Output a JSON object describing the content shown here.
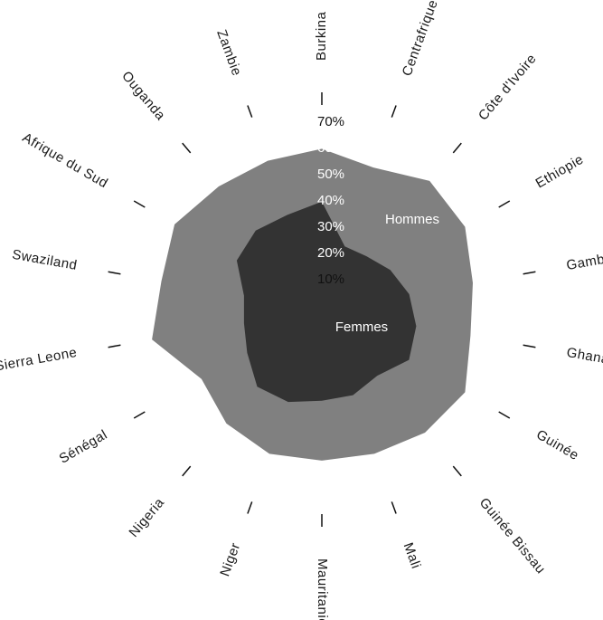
{
  "chart_data": {
    "type": "radar",
    "title": "",
    "categories": [
      "Burkina",
      "Centrafrique",
      "Côte d'Ivoire",
      "Ethiopie",
      "Gambie",
      "Ghana",
      "Guinée",
      "Guinée Bissau",
      "Mali",
      "Mauritanie",
      "Niger",
      "Nigeria",
      "Sénégal",
      "Sierra Leone",
      "Swaziland",
      "Afrique du Sud",
      "Ouganda",
      "Zambie"
    ],
    "r_ticks": [
      "10%",
      "20%",
      "30%",
      "40%",
      "50%",
      "60%",
      "70%"
    ],
    "rlim": [
      0,
      100
    ],
    "series": [
      {
        "name": "Hommes",
        "color": "#808080",
        "values": [
          67,
          63,
          70,
          69,
          64,
          63,
          69,
          67,
          64,
          63,
          64,
          62,
          58,
          72,
          68,
          71,
          67,
          66
        ]
      },
      {
        "name": "Femmes",
        "color": "#333333",
        "values": [
          45,
          28,
          29,
          33,
          37,
          40,
          42,
          36,
          38,
          38,
          41,
          42,
          36,
          33,
          33,
          41,
          43,
          42
        ]
      }
    ],
    "grid": false
  }
}
